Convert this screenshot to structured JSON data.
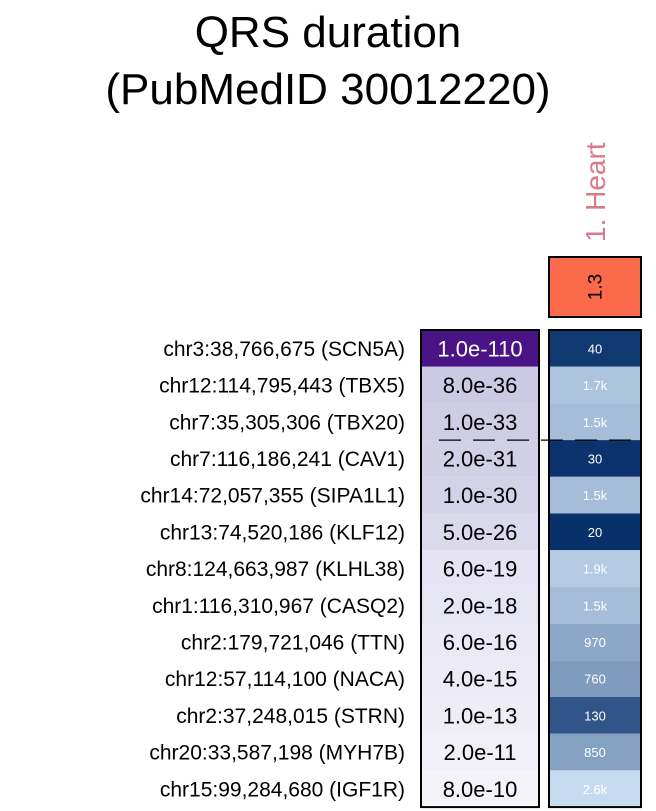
{
  "chart_data": {
    "type": "heatmap",
    "title": [
      "QRS duration",
      "(PubMedID 30012220)"
    ],
    "tissue": {
      "label": "1. Heart",
      "label_color": "#d87a8a",
      "score": "1.3",
      "score_color": "#fb6a4a"
    },
    "colors": {
      "pvalue_scale": [
        "#ffffff",
        "#4a1486"
      ],
      "rank_scale_light": "#c6dbef",
      "rank_scale_dark": "#08306b"
    },
    "rows": [
      {
        "label": "chr3:38,766,675 (SCN5A)",
        "pvalue": "1.0e-110",
        "neglog10p": 110,
        "rank": "40",
        "rank_value": 40
      },
      {
        "label": "chr12:114,795,443 (TBX5)",
        "pvalue": "8.0e-36",
        "neglog10p": 35.1,
        "rank": "1.7k",
        "rank_value": 1700
      },
      {
        "label": "chr7:35,305,306 (TBX20)",
        "pvalue": "1.0e-33",
        "neglog10p": 33,
        "rank": "1.5k",
        "rank_value": 1500
      },
      {
        "label": "chr7:116,186,241 (CAV1)",
        "pvalue": "2.0e-31",
        "neglog10p": 30.7,
        "rank": "30",
        "rank_value": 30
      },
      {
        "label": "chr14:72,057,355 (SIPA1L1)",
        "pvalue": "1.0e-30",
        "neglog10p": 30,
        "rank": "1.5k",
        "rank_value": 1500
      },
      {
        "label": "chr13:74,520,186 (KLF12)",
        "pvalue": "5.0e-26",
        "neglog10p": 25.3,
        "rank": "20",
        "rank_value": 20
      },
      {
        "label": "chr8:124,663,987 (KLHL38)",
        "pvalue": "6.0e-19",
        "neglog10p": 18.2,
        "rank": "1.9k",
        "rank_value": 1900
      },
      {
        "label": "chr1:116,310,967 (CASQ2)",
        "pvalue": "2.0e-18",
        "neglog10p": 17.7,
        "rank": "1.5k",
        "rank_value": 1500
      },
      {
        "label": "chr2:179,721,046 (TTN)",
        "pvalue": "6.0e-16",
        "neglog10p": 15.2,
        "rank": "970",
        "rank_value": 970
      },
      {
        "label": "chr12:57,114,100 (NACA)",
        "pvalue": "4.0e-15",
        "neglog10p": 14.4,
        "rank": "760",
        "rank_value": 760
      },
      {
        "label": "chr2:37,248,015 (STRN)",
        "pvalue": "1.0e-13",
        "neglog10p": 13,
        "rank": "130",
        "rank_value": 130
      },
      {
        "label": "chr20:33,587,198 (MYH7B)",
        "pvalue": "2.0e-11",
        "neglog10p": 10.7,
        "rank": "850",
        "rank_value": 850
      },
      {
        "label": "chr15:99,284,680 (IGF1R)",
        "pvalue": "8.0e-10",
        "neglog10p": 9.1,
        "rank": "2.6k",
        "rank_value": 2600
      }
    ],
    "dashed_separator_after_row": 3
  }
}
